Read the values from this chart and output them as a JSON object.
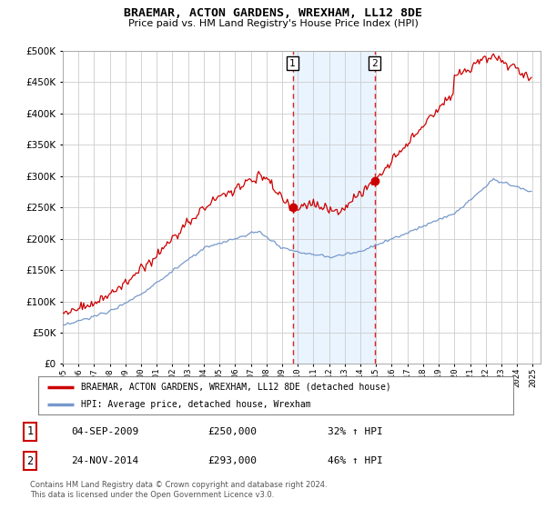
{
  "title": "BRAEMAR, ACTON GARDENS, WREXHAM, LL12 8DE",
  "subtitle": "Price paid vs. HM Land Registry's House Price Index (HPI)",
  "legend_label_red": "BRAEMAR, ACTON GARDENS, WREXHAM, LL12 8DE (detached house)",
  "legend_label_blue": "HPI: Average price, detached house, Wrexham",
  "transaction1_date": "04-SEP-2009",
  "transaction1_price": "£250,000",
  "transaction1_hpi": "32% ↑ HPI",
  "transaction2_date": "24-NOV-2014",
  "transaction2_price": "£293,000",
  "transaction2_hpi": "46% ↑ HPI",
  "footer": "Contains HM Land Registry data © Crown copyright and database right 2024.\nThis data is licensed under the Open Government Licence v3.0.",
  "ylim": [
    0,
    500000
  ],
  "yticks": [
    0,
    50000,
    100000,
    150000,
    200000,
    250000,
    300000,
    350000,
    400000,
    450000,
    500000
  ],
  "xlim_start": 1995.0,
  "xlim_end": 2025.5,
  "vline1_x": 2009.67,
  "vline2_x": 2014.9,
  "sale1_x": 2009.67,
  "sale1_y": 250000,
  "sale2_x": 2014.9,
  "sale2_y": 293000,
  "shade_color": "#ddeeff",
  "vline_color": "#dd2222",
  "red_line_color": "#cc0000",
  "blue_line_color": "#7799cc",
  "background_color": "#ffffff",
  "grid_color": "#cccccc"
}
